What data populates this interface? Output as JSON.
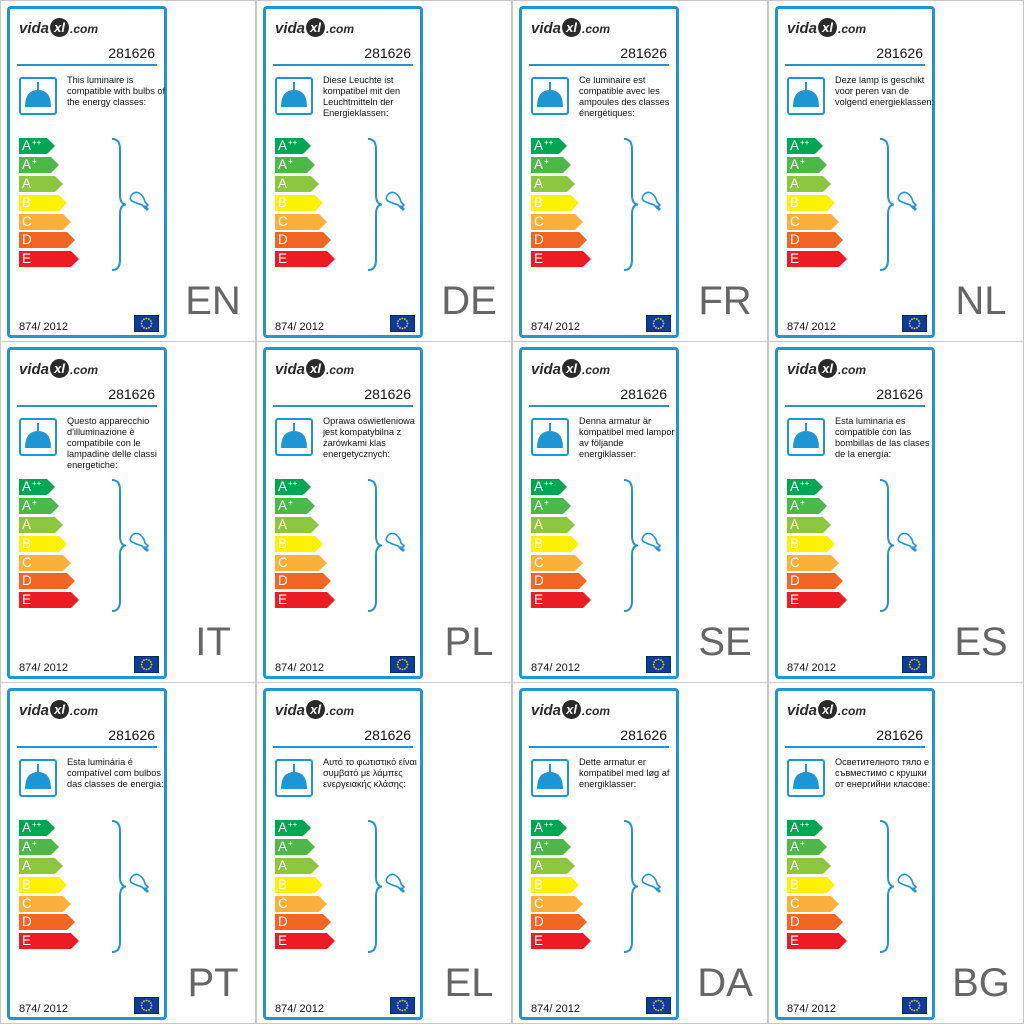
{
  "brand": {
    "logo_pre": "vida",
    "logo_mark": "xl",
    "logo_post": ".com"
  },
  "product_code": "281626",
  "regulation": "874/ 2012",
  "colors": {
    "accent": "#1f96d4",
    "lamp": "#1f96d4",
    "eu_flag": "#0c3c9a",
    "eu_stars": "#f7d117",
    "language_code": "#666666"
  },
  "energy_classes": [
    {
      "letter": "A",
      "sup": "++",
      "color": "#00a651"
    },
    {
      "letter": "A",
      "sup": "+",
      "color": "#4cb848"
    },
    {
      "letter": "A",
      "sup": "",
      "color": "#8dc63f"
    },
    {
      "letter": "B",
      "sup": "",
      "color": "#fff200"
    },
    {
      "letter": "C",
      "sup": "",
      "color": "#fbb03b"
    },
    {
      "letter": "D",
      "sup": "",
      "color": "#f26522"
    },
    {
      "letter": "E",
      "sup": "",
      "color": "#ed1c24"
    }
  ],
  "icons": {
    "lamp": "pendant-lamp-icon",
    "bulb": "light-bulb-icon",
    "eu_flag": "eu-flag-icon",
    "bracket": "bracket-icon"
  },
  "labels": [
    {
      "lang": "EN",
      "text": "This luminaire is compatible with bulbs of the energy classes:"
    },
    {
      "lang": "DE",
      "text": "Diese Leuchte ist kompatibel mit den Leuchtmitteln der Energieklassen:"
    },
    {
      "lang": "FR",
      "text": "Ce luminaire est compatible avec les ampoules des classes énergétiques:"
    },
    {
      "lang": "NL",
      "text": "Deze lamp is geschikt voor peren van de volgend energieklassen:"
    },
    {
      "lang": "IT",
      "text": "Questo apparecchio d'illuminazione è compatibile con le lampadine delle classi energetiche:"
    },
    {
      "lang": "PL",
      "text": "Oprawa oświetleniowa jest kompatybilna z żarówkami klas energetycznych:"
    },
    {
      "lang": "SE",
      "text": "Denna armatur är kompatibel med lampor av följande energiklasser:"
    },
    {
      "lang": "ES",
      "text": "Esta luminaria es compatible con las bombillas de las clases de la energía:"
    },
    {
      "lang": "PT",
      "text": "Esta luminária é compatível com bulbos das classes de energia:"
    },
    {
      "lang": "EL",
      "text": "Αυτό το φωτιστικό είναι συμβατό με λάμπες ενεργειακής κλάσης:"
    },
    {
      "lang": "DA",
      "text": "Dette armatur er kompatibel med løg af energiklasser:"
    },
    {
      "lang": "BG",
      "text": "Осветителното тяло е съвместимо с крушки от енергийни класове:"
    }
  ]
}
